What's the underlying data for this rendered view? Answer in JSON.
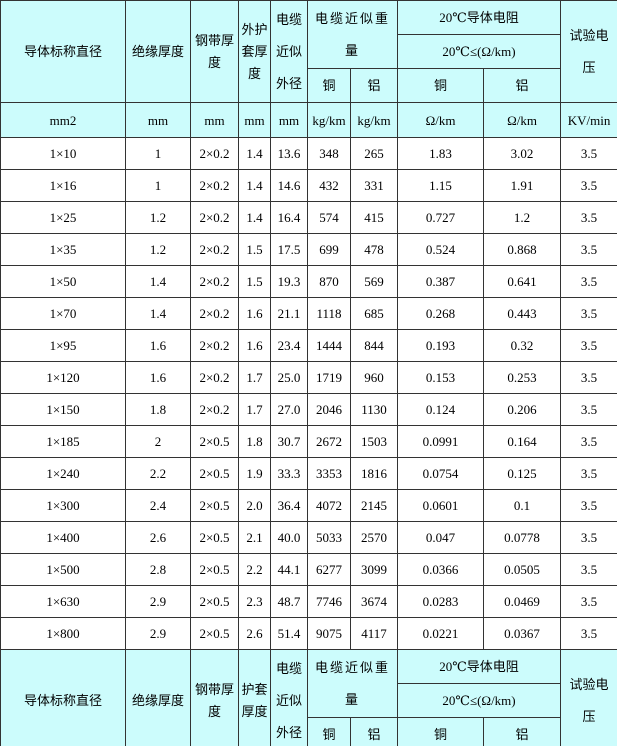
{
  "header": {
    "diameter": "导体标称直径",
    "insulation": "绝缘厚度",
    "steel_tape": "钢带厚度",
    "sheath": "外护套厚度",
    "outer_diameter": "电缆近似外径",
    "weight": "电缆近似重量",
    "resistance": "20℃导体电阻",
    "resistance_limit": "20℃≤(Ω/km)",
    "voltage": "试验电压",
    "weight_copper": "铜",
    "weight_aluminum": "铝",
    "resistance_copper": "铜",
    "resistance_aluminum": "铝"
  },
  "units": [
    "mm2",
    "mm",
    "mm",
    "mm",
    "mm",
    "kg/km",
    "kg/km",
    "Ω/km",
    "Ω/km",
    "KV/min"
  ],
  "rows": [
    [
      "1×10",
      "1",
      "2×0.2",
      "1.4",
      "13.6",
      "348",
      "265",
      "1.83",
      "3.02",
      "3.5"
    ],
    [
      "1×16",
      "1",
      "2×0.2",
      "1.4",
      "14.6",
      "432",
      "331",
      "1.15",
      "1.91",
      "3.5"
    ],
    [
      "1×25",
      "1.2",
      "2×0.2",
      "1.4",
      "16.4",
      "574",
      "415",
      "0.727",
      "1.2",
      "3.5"
    ],
    [
      "1×35",
      "1.2",
      "2×0.2",
      "1.5",
      "17.5",
      "699",
      "478",
      "0.524",
      "0.868",
      "3.5"
    ],
    [
      "1×50",
      "1.4",
      "2×0.2",
      "1.5",
      "19.3",
      "870",
      "569",
      "0.387",
      "0.641",
      "3.5"
    ],
    [
      "1×70",
      "1.4",
      "2×0.2",
      "1.6",
      "21.1",
      "1118",
      "685",
      "0.268",
      "0.443",
      "3.5"
    ],
    [
      "1×95",
      "1.6",
      "2×0.2",
      "1.6",
      "23.4",
      "1444",
      "844",
      "0.193",
      "0.32",
      "3.5"
    ],
    [
      "1×120",
      "1.6",
      "2×0.2",
      "1.7",
      "25.0",
      "1719",
      "960",
      "0.153",
      "0.253",
      "3.5"
    ],
    [
      "1×150",
      "1.8",
      "2×0.2",
      "1.7",
      "27.0",
      "2046",
      "1130",
      "0.124",
      "0.206",
      "3.5"
    ],
    [
      "1×185",
      "2",
      "2×0.5",
      "1.8",
      "30.7",
      "2672",
      "1503",
      "0.0991",
      "0.164",
      "3.5"
    ],
    [
      "1×240",
      "2.2",
      "2×0.5",
      "1.9",
      "33.3",
      "3353",
      "1816",
      "0.0754",
      "0.125",
      "3.5"
    ],
    [
      "1×300",
      "2.4",
      "2×0.5",
      "2.0",
      "36.4",
      "4072",
      "2145",
      "0.0601",
      "0.1",
      "3.5"
    ],
    [
      "1×400",
      "2.6",
      "2×0.5",
      "2.1",
      "40.0",
      "5033",
      "2570",
      "0.047",
      "0.0778",
      "3.5"
    ],
    [
      "1×500",
      "2.8",
      "2×0.5",
      "2.2",
      "44.1",
      "6277",
      "3099",
      "0.0366",
      "0.0505",
      "3.5"
    ],
    [
      "1×630",
      "2.9",
      "2×0.5",
      "2.3",
      "48.7",
      "7746",
      "3674",
      "0.0283",
      "0.0469",
      "3.5"
    ],
    [
      "1×800",
      "2.9",
      "2×0.5",
      "2.6",
      "51.4",
      "9075",
      "4117",
      "0.0221",
      "0.0367",
      "3.5"
    ]
  ],
  "footer": {
    "diameter": "导体标称直径",
    "insulation": "绝缘厚度",
    "steel_tape": "钢带厚度",
    "sheath": "护套厚度",
    "outer_diameter": "电缆近似外径",
    "weight": "电缆近似重量",
    "resistance": "20℃导体电阻",
    "resistance_limit": "20℃≤(Ω/km)",
    "voltage": "试验电压",
    "weight_copper": "铜",
    "weight_aluminum": "铝",
    "resistance_copper": "铜",
    "resistance_aluminum": "铝"
  }
}
